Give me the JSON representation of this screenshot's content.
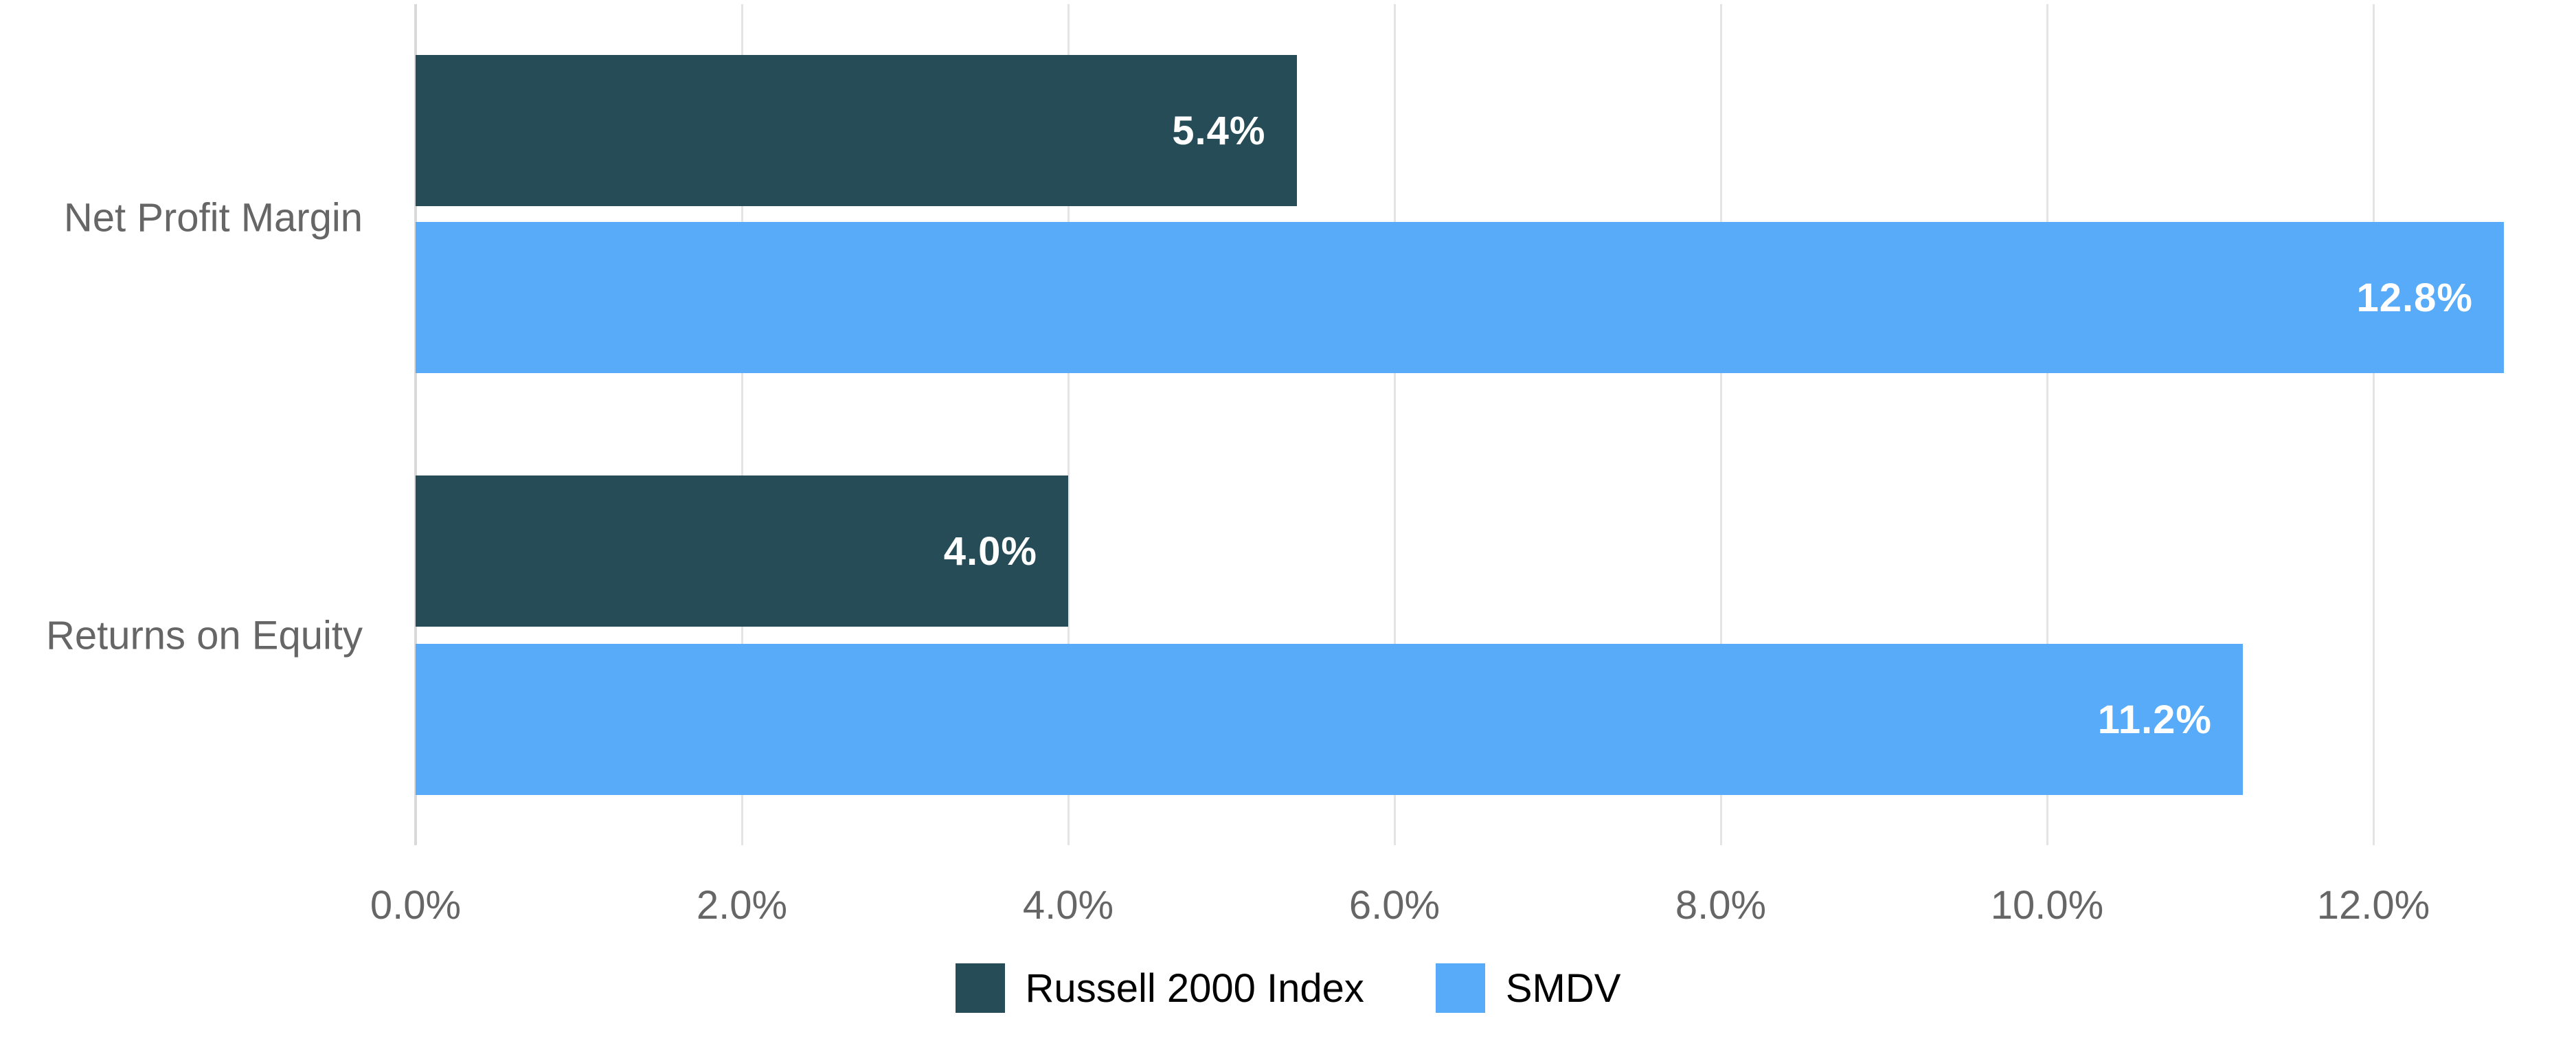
{
  "chart_data": {
    "type": "bar",
    "orientation": "horizontal",
    "title": "",
    "categories": [
      "Net Profit Margin",
      "Returns on Equity"
    ],
    "series": [
      {
        "name": "Russell 2000 Index",
        "color": "#264C58",
        "values": [
          5.4,
          4.0
        ],
        "labels": [
          "5.4%",
          "4.0%"
        ]
      },
      {
        "name": "SMDV",
        "color": "#58ABF8",
        "values": [
          12.8,
          11.2
        ],
        "labels": [
          "12.8%",
          "11.2%"
        ]
      }
    ],
    "x_axis": {
      "unit": "%",
      "min": 0,
      "max": 13.2,
      "grid": true,
      "ticks": [
        {
          "value": 0,
          "label": "0.0%"
        },
        {
          "value": 2,
          "label": "2.0%"
        },
        {
          "value": 4,
          "label": "4.0%"
        },
        {
          "value": 6,
          "label": "6.0%"
        },
        {
          "value": 8,
          "label": "8.0%"
        },
        {
          "value": 10,
          "label": "10.0%"
        },
        {
          "value": 12,
          "label": "12.0%"
        }
      ]
    },
    "legend_position": "bottom",
    "colors": {
      "background": "#FFFFFF",
      "grid": "#E4E4E4",
      "zero_line": "#D9D9D9",
      "tick_label": "#666666",
      "category_label": "#666666",
      "value_label": "#FFFFFF",
      "legend_text": "#000000"
    }
  }
}
